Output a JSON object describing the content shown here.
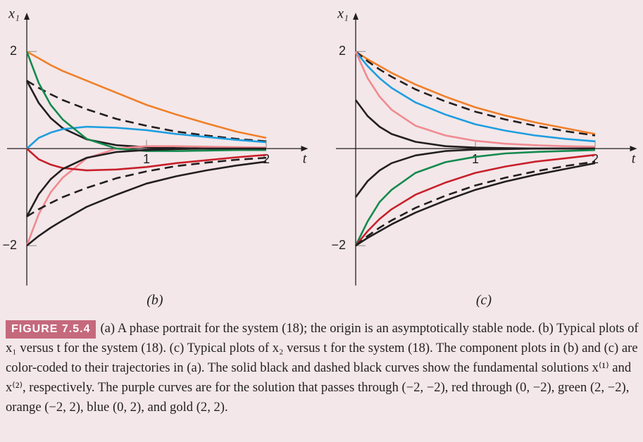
{
  "chart_data": [
    {
      "type": "line",
      "label": "(b)",
      "x_label": "t",
      "y_label": "x₁",
      "x": [
        0,
        0.1,
        0.2,
        0.3,
        0.5,
        0.75,
        1,
        1.25,
        1.5,
        1.75,
        2
      ],
      "xlim": [
        -0.165,
        2.35
      ],
      "ylim": [
        -2.82,
        2.8
      ],
      "xticks": [
        1,
        2
      ],
      "yticks": [
        2,
        {
          "value": -2,
          "label": "−2"
        }
      ],
      "series": [
        {
          "color": "#f07f28",
          "values": [
            2,
            1.86,
            1.72,
            1.6,
            1.4,
            1.15,
            0.9,
            0.7,
            0.52,
            0.35,
            0.22
          ]
        },
        {
          "color": "#231f20",
          "dashed": true,
          "values": [
            1.4,
            1.25,
            1.12,
            1.0,
            0.81,
            0.61,
            0.47,
            0.35,
            0.27,
            0.2,
            0.15
          ]
        },
        {
          "color": "#231f20",
          "values": [
            1.4,
            0.94,
            0.63,
            0.42,
            0.19,
            0.07,
            0.03,
            0.01,
            0,
            0,
            0
          ]
        },
        {
          "color": "#1e9ee0",
          "values": [
            0,
            0.22,
            0.33,
            0.4,
            0.45,
            0.43,
            0.38,
            0.3,
            0.24,
            0.18,
            0.13
          ]
        },
        {
          "color": "#f08a90",
          "values": [
            -2,
            -1.35,
            -0.9,
            -0.6,
            -0.2,
            0,
            0.05,
            0.05,
            0.04,
            0.03,
            0.02
          ]
        },
        {
          "color": "#c8202a",
          "values": [
            0,
            -0.22,
            -0.33,
            -0.4,
            -0.45,
            -0.43,
            -0.38,
            -0.3,
            -0.24,
            -0.18,
            -0.13
          ]
        },
        {
          "color": "#138a4e",
          "values": [
            2,
            1.35,
            0.9,
            0.6,
            0.2,
            0,
            -0.05,
            -0.05,
            -0.04,
            -0.03,
            -0.03
          ]
        },
        {
          "color": "#231f20",
          "dashed": true,
          "values": [
            -1.4,
            -1.25,
            -1.12,
            -1.0,
            -0.81,
            -0.61,
            -0.47,
            -0.36,
            -0.29,
            -0.23,
            -0.19
          ]
        },
        {
          "color": "#231f20",
          "values": [
            -1.4,
            -0.94,
            -0.63,
            -0.42,
            -0.19,
            -0.07,
            -0.03,
            -0.01,
            0,
            0,
            0
          ]
        },
        {
          "color": "#231f20",
          "values": [
            -2,
            -1.8,
            -1.63,
            -1.48,
            -1.2,
            -0.95,
            -0.72,
            -0.57,
            -0.45,
            -0.35,
            -0.27
          ]
        }
      ]
    },
    {
      "type": "line",
      "label": "(c)",
      "x_label": "t",
      "y_label": "x₁",
      "x": [
        0,
        0.1,
        0.2,
        0.3,
        0.5,
        0.75,
        1,
        1.25,
        1.5,
        1.75,
        2
      ],
      "xlim": [
        -0.165,
        2.35
      ],
      "ylim": [
        -2.82,
        2.8
      ],
      "xticks": [
        1,
        2
      ],
      "yticks": [
        2,
        {
          "value": -2,
          "label": "−2"
        }
      ],
      "series": [
        {
          "color": "#f07f28",
          "values": [
            2,
            1.84,
            1.7,
            1.56,
            1.32,
            1.07,
            0.85,
            0.68,
            0.54,
            0.42,
            0.3
          ]
        },
        {
          "color": "#231f20",
          "dashed": true,
          "values": [
            2,
            1.8,
            1.63,
            1.48,
            1.22,
            0.97,
            0.76,
            0.6,
            0.47,
            0.36,
            0.27
          ]
        },
        {
          "color": "#1e9ee0",
          "values": [
            2,
            1.7,
            1.45,
            1.25,
            0.95,
            0.7,
            0.5,
            0.37,
            0.27,
            0.2,
            0.15
          ]
        },
        {
          "color": "#f08a90",
          "values": [
            2,
            1.45,
            1.07,
            0.8,
            0.47,
            0.27,
            0.16,
            0.1,
            0.07,
            0.05,
            0.04
          ]
        },
        {
          "color": "#231f20",
          "values": [
            1,
            0.67,
            0.45,
            0.3,
            0.14,
            0.05,
            0.02,
            0.01,
            0,
            0,
            0
          ]
        },
        {
          "color": "#231f20",
          "values": [
            -1,
            -0.67,
            -0.45,
            -0.3,
            -0.14,
            -0.05,
            -0.02,
            -0.01,
            0,
            0,
            0
          ]
        },
        {
          "color": "#138a4e",
          "values": [
            -2,
            -1.5,
            -1.1,
            -0.85,
            -0.5,
            -0.28,
            -0.17,
            -0.1,
            -0.07,
            -0.05,
            -0.03
          ]
        },
        {
          "color": "#c8202a",
          "values": [
            -2,
            -1.7,
            -1.45,
            -1.25,
            -0.95,
            -0.7,
            -0.5,
            -0.37,
            -0.27,
            -0.2,
            -0.13
          ]
        },
        {
          "color": "#231f20",
          "dashed": true,
          "values": [
            -2,
            -1.8,
            -1.63,
            -1.48,
            -1.22,
            -0.97,
            -0.76,
            -0.6,
            -0.47,
            -0.36,
            -0.27
          ]
        },
        {
          "color": "#231f20",
          "values": [
            -2,
            -1.84,
            -1.7,
            -1.56,
            -1.32,
            -1.07,
            -0.85,
            -0.68,
            -0.54,
            -0.42,
            -0.3
          ]
        }
      ]
    }
  ],
  "caption": {
    "badge": "FIGURE 7.5.4",
    "text": "(a) A phase portrait for the system (18); the origin is an asymptotically stable node. (b) Typical plots of x₁ versus t for the system (18). (c) Typical plots of x₂ versus t for the system (18). The component plots in (b) and (c) are color-coded to their trajectories in (a). The solid black and dashed black curves show the fundamental solutions x⁽¹⁾ and x⁽²⁾, respectively. The purple curves are for the solution that passes through (−2, −2), red through (0, −2), green (2, −2), orange (−2, 2), blue (0, 2), and gold (2, 2)."
  }
}
